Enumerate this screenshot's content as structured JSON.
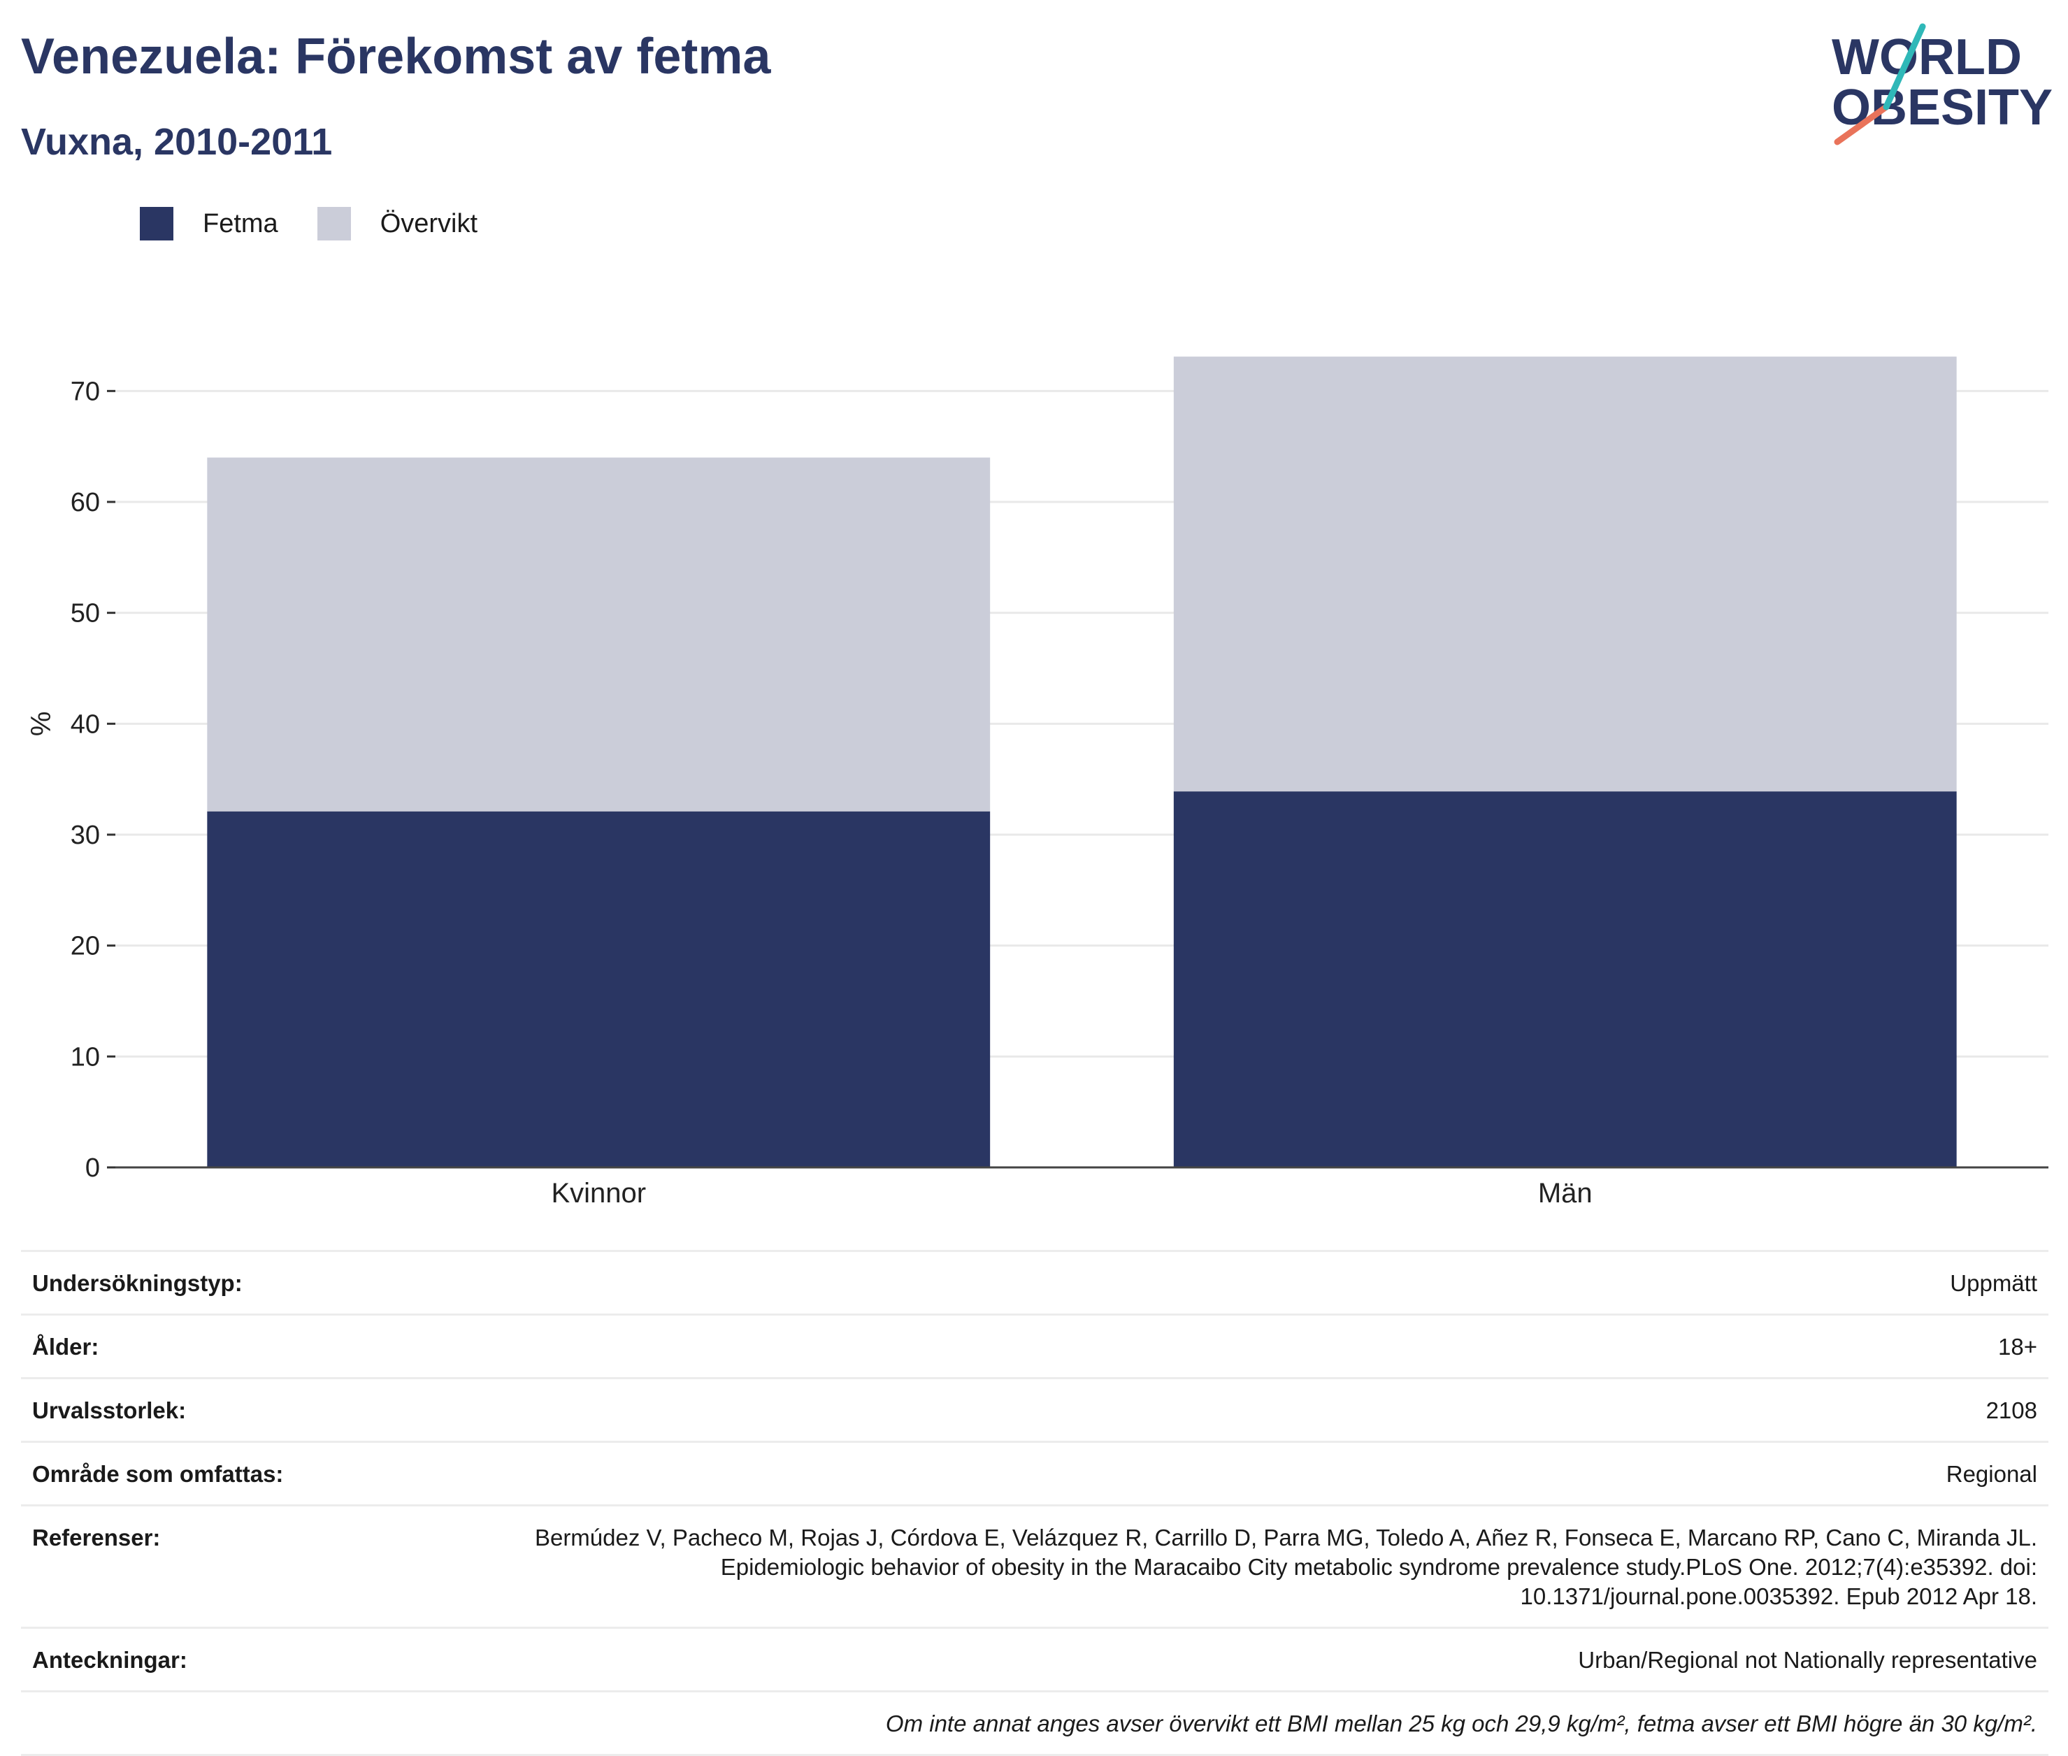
{
  "header": {
    "title": "Venezuela: Förekomst av fetma",
    "subtitle": "Vuxna, 2010-2011"
  },
  "logo": {
    "line1": "WORLD",
    "line2": "OBESITY"
  },
  "colors": {
    "fetma": "#2a3663",
    "overvikt": "#cbcdd9",
    "title": "#2a3663",
    "logo_teal": "#2fb8b8",
    "logo_coral": "#e9735a"
  },
  "legend": [
    {
      "label": "Fetma",
      "color": "#2a3663"
    },
    {
      "label": "Övervikt",
      "color": "#cbcdd9"
    }
  ],
  "chart_data": {
    "type": "bar",
    "stacked": true,
    "categories": [
      "Kvinnor",
      "Män"
    ],
    "series": [
      {
        "name": "Fetma",
        "values": [
          32.1,
          33.9
        ]
      },
      {
        "name": "Övervikt",
        "values": [
          31.9,
          39.2
        ]
      }
    ],
    "ylabel": "%",
    "ylim": [
      0,
      75
    ],
    "yticks": [
      0,
      10,
      20,
      30,
      40,
      50,
      60,
      70
    ],
    "grid": true,
    "legend_position": "top-left"
  },
  "info": {
    "rows": [
      {
        "label": "Undersökningstyp:",
        "value": "Uppmätt"
      },
      {
        "label": "Ålder:",
        "value": "18+"
      },
      {
        "label": "Urvalsstorlek:",
        "value": "2108"
      },
      {
        "label": "Område som omfattas:",
        "value": "Regional"
      },
      {
        "label": "Referenser:",
        "value": "Bermúdez V, Pacheco M, Rojas J, Córdova E, Velázquez R, Carrillo D, Parra MG, Toledo A, Añez R, Fonseca E, Marcano RP, Cano C, Miranda JL. Epidemiologic behavior of obesity in the Maracaibo City metabolic syndrome prevalence study.PLoS One. 2012;7(4):e35392. doi: 10.1371/journal.pone.0035392. Epub 2012 Apr 18."
      },
      {
        "label": "Anteckningar:",
        "value": "Urban/Regional not Nationally representative"
      }
    ],
    "footnote": "Om inte annat anges avser övervikt ett BMI mellan 25 kg och 29,9 kg/m², fetma avser ett BMI högre än 30 kg/m²."
  }
}
